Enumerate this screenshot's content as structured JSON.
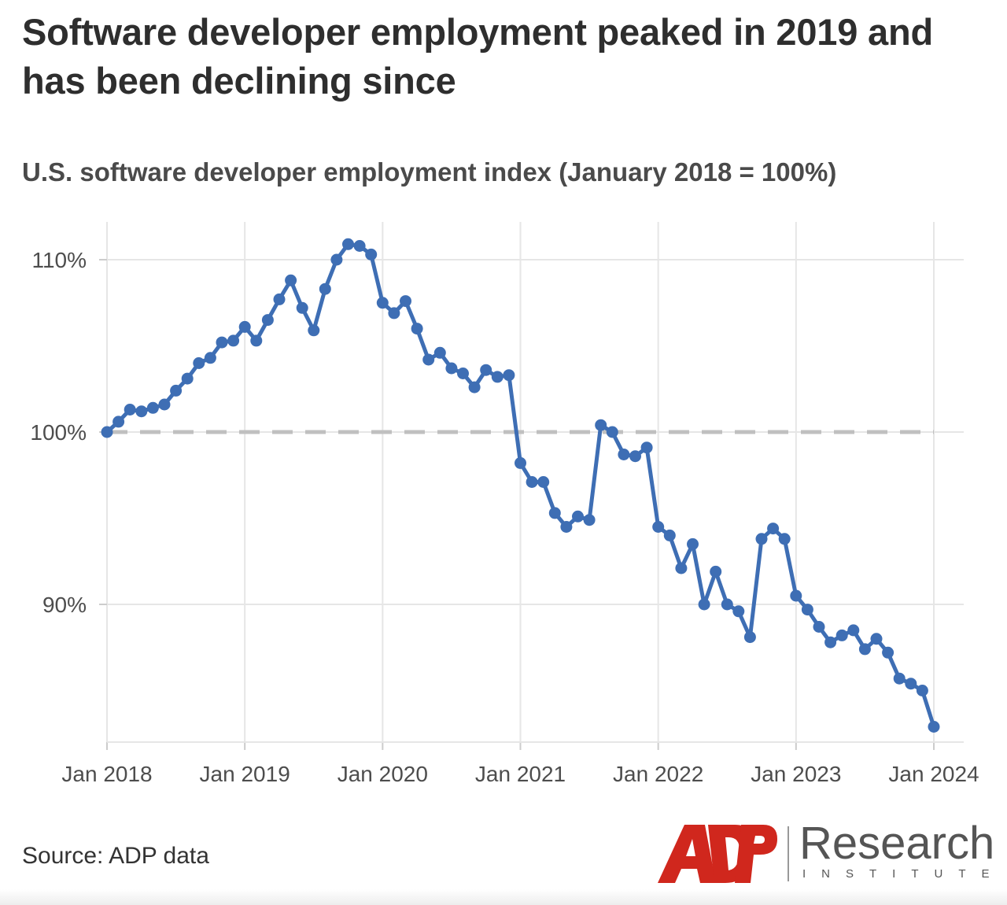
{
  "title": "Software developer employment peaked in 2019 and has been declining since",
  "subtitle": "U.S. software developer employment index (January 2018 = 100%)",
  "source": "Source: ADP data",
  "logo": {
    "brand": "ADP",
    "name": "Research",
    "tagline": "INSTITUTE"
  },
  "colors": {
    "line": "#3e6eb4",
    "reference": "#c0c0c0",
    "grid": "#e6e6e6",
    "logo_red": "#d0271d"
  },
  "chart_data": {
    "type": "line",
    "title": "U.S. software developer employment index (January 2018 = 100%)",
    "xlabel": "",
    "ylabel": "",
    "x_ticks": [
      "Jan 2018",
      "Jan 2019",
      "Jan 2020",
      "Jan 2021",
      "Jan 2022",
      "Jan 2023",
      "Jan 2024"
    ],
    "y_ticks": [
      90,
      100,
      110
    ],
    "y_tick_labels": [
      "90%",
      "100%",
      "110%"
    ],
    "ylim": [
      81.5,
      112
    ],
    "xlim": [
      "2018-01",
      "2024-01"
    ],
    "grid": true,
    "reference_line": 100,
    "series": [
      {
        "x": [
          "2018-01",
          "2018-02",
          "2018-03",
          "2018-04",
          "2018-05",
          "2018-06",
          "2018-07",
          "2018-08",
          "2018-09",
          "2018-10",
          "2018-11",
          "2018-12",
          "2019-01",
          "2019-02",
          "2019-03",
          "2019-04",
          "2019-05",
          "2019-06",
          "2019-07",
          "2019-08",
          "2019-09",
          "2019-10",
          "2019-11",
          "2019-12",
          "2020-01",
          "2020-02",
          "2020-03",
          "2020-04",
          "2020-05",
          "2020-06",
          "2020-07",
          "2020-08",
          "2020-09",
          "2020-10",
          "2020-11",
          "2020-12",
          "2021-01",
          "2021-02",
          "2021-03",
          "2021-04",
          "2021-05",
          "2021-06",
          "2021-07",
          "2021-08",
          "2021-09",
          "2021-10",
          "2021-11",
          "2021-12",
          "2022-01",
          "2022-02",
          "2022-03",
          "2022-04",
          "2022-05",
          "2022-06",
          "2022-07",
          "2022-08",
          "2022-09",
          "2022-10",
          "2022-11",
          "2022-12",
          "2023-01",
          "2023-02",
          "2023-03",
          "2023-04",
          "2023-05",
          "2023-06",
          "2023-07",
          "2023-08",
          "2023-09",
          "2023-10",
          "2023-11",
          "2023-12",
          "2024-01"
        ],
        "values": [
          100.0,
          100.6,
          101.3,
          101.2,
          101.4,
          101.6,
          102.4,
          103.1,
          104.0,
          104.3,
          105.2,
          105.3,
          106.1,
          105.3,
          106.5,
          107.7,
          108.8,
          107.2,
          105.9,
          108.3,
          110.0,
          110.9,
          110.8,
          110.3,
          107.5,
          106.9,
          107.6,
          106.0,
          104.2,
          104.6,
          103.7,
          103.4,
          102.6,
          103.6,
          103.2,
          103.3,
          98.2,
          97.1,
          97.1,
          95.3,
          94.5,
          95.1,
          94.9,
          100.4,
          100.0,
          98.7,
          98.6,
          99.1,
          94.5,
          94.0,
          92.1,
          93.5,
          90.0,
          91.9,
          90.0,
          89.6,
          88.1,
          93.8,
          94.4,
          93.8,
          90.5,
          89.7,
          88.7,
          87.8,
          88.2,
          88.5,
          87.4,
          88.0,
          87.2,
          85.7,
          85.4,
          85.0,
          82.9
        ]
      }
    ]
  }
}
